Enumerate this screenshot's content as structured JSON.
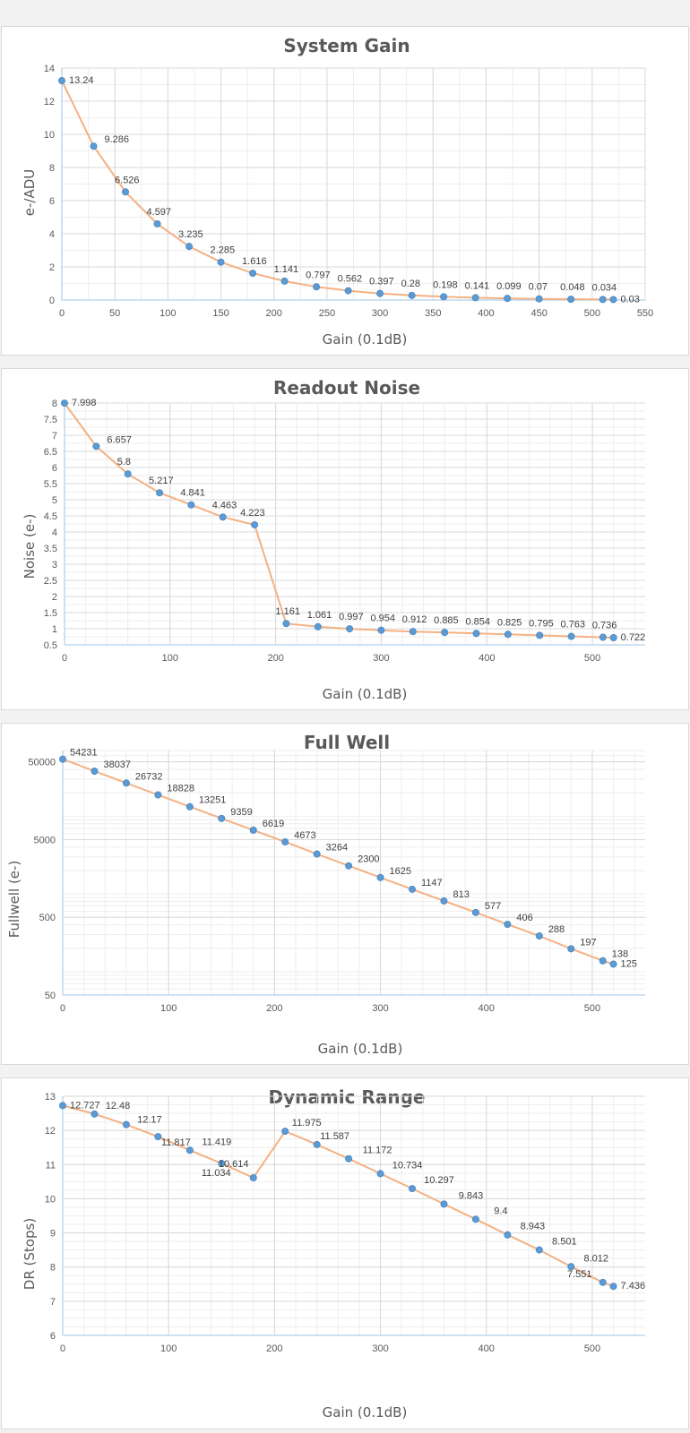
{
  "colors": {
    "line": "#f4b183",
    "marker": "#5b9bd5",
    "axis": "#bdd7ee",
    "grid_major": "#d9d9d9",
    "grid_minor": "#eeeeee"
  },
  "chart_data": [
    {
      "type": "line",
      "title": "System Gain",
      "xlabel": "Gain (0.1dB)",
      "ylabel": "e-/ADU",
      "xlim": [
        0,
        550
      ],
      "ylim": [
        0,
        14
      ],
      "xticks": [
        0,
        50,
        100,
        150,
        200,
        250,
        300,
        350,
        400,
        450,
        500,
        550
      ],
      "yticks": [
        0,
        2,
        4,
        6,
        8,
        10,
        12,
        14
      ],
      "grid": true,
      "y_scale": "linear",
      "x": [
        0,
        30,
        60,
        90,
        120,
        150,
        180,
        210,
        240,
        270,
        300,
        330,
        360,
        390,
        420,
        450,
        480,
        510,
        520
      ],
      "y": [
        13.24,
        9.286,
        6.526,
        4.597,
        3.235,
        2.285,
        1.616,
        1.141,
        0.797,
        0.562,
        0.397,
        0.28,
        0.198,
        0.141,
        0.099,
        0.07,
        0.048,
        0.034,
        0.03
      ],
      "labels": [
        "13.24",
        "9.286",
        "6.526",
        "4.597",
        "3.235",
        "2.285",
        "1.616",
        "1.141",
        "0.797",
        "0.562",
        "0.397",
        "0.28",
        "0.198",
        "0.141",
        "0.099",
        "0.07",
        "0.048",
        "0.034",
        "0.03"
      ]
    },
    {
      "type": "line",
      "title": "Readout Noise",
      "xlabel": "Gain (0.1dB)",
      "ylabel": "Noise (e-)",
      "xlim": [
        0,
        550
      ],
      "ylim": [
        0.5,
        8
      ],
      "xticks": [
        0,
        100,
        200,
        300,
        400,
        500
      ],
      "yticks": [
        0.5,
        1,
        1.5,
        2,
        2.5,
        3,
        3.5,
        4,
        4.5,
        5,
        5.5,
        6,
        6.5,
        7,
        7.5,
        8
      ],
      "grid": true,
      "y_scale": "linear",
      "x": [
        0,
        30,
        60,
        90,
        120,
        150,
        180,
        210,
        240,
        270,
        300,
        330,
        360,
        390,
        420,
        450,
        480,
        510,
        520
      ],
      "y": [
        7.998,
        6.657,
        5.8,
        5.217,
        4.841,
        4.463,
        4.223,
        1.161,
        1.061,
        0.997,
        0.954,
        0.912,
        0.885,
        0.854,
        0.825,
        0.795,
        0.763,
        0.736,
        0.722
      ],
      "labels": [
        "7.998",
        "6.657",
        "5.8",
        "5.217",
        "4.841",
        "4.463",
        "4.223",
        "1.161",
        "1.061",
        "0.997",
        "0.954",
        "0.912",
        "0.885",
        "0.854",
        "0.825",
        "0.795",
        "0.763",
        "0.736",
        "0.722"
      ]
    },
    {
      "type": "line",
      "title": "Full Well",
      "xlabel": "Gain (0.1dB)",
      "ylabel": "Fullwell (e-)",
      "xlim": [
        0,
        550
      ],
      "ylim": [
        50,
        70000
      ],
      "xticks": [
        0,
        100,
        200,
        300,
        400,
        500
      ],
      "yticks": [
        50,
        500,
        5000,
        50000
      ],
      "grid": true,
      "y_scale": "log",
      "x": [
        0,
        30,
        60,
        90,
        120,
        150,
        180,
        210,
        240,
        270,
        300,
        330,
        360,
        390,
        420,
        450,
        480,
        510,
        520
      ],
      "y": [
        54231,
        38037,
        26732,
        18828,
        13251,
        9359,
        6619,
        4673,
        3264,
        2300,
        1625,
        1147,
        813,
        577,
        406,
        288,
        197,
        138,
        125
      ],
      "labels": [
        "54231",
        "38037",
        "26732",
        "18828",
        "13251",
        "9359",
        "6619",
        "4673",
        "3264",
        "2300",
        "1625",
        "1147",
        "813",
        "577",
        "406",
        "288",
        "197",
        "138",
        "125"
      ]
    },
    {
      "type": "line",
      "title": "Dynamic Range",
      "xlabel": "Gain (0.1dB)",
      "ylabel": "DR (Stops)",
      "xlim": [
        0,
        550
      ],
      "ylim": [
        6,
        13
      ],
      "xticks": [
        0,
        100,
        200,
        300,
        400,
        500
      ],
      "yticks": [
        6,
        7,
        8,
        9,
        10,
        11,
        12,
        13
      ],
      "grid": true,
      "y_scale": "linear",
      "x": [
        0,
        30,
        60,
        90,
        120,
        150,
        180,
        210,
        240,
        270,
        300,
        330,
        360,
        390,
        420,
        450,
        480,
        510,
        520
      ],
      "y": [
        12.727,
        12.48,
        12.17,
        11.817,
        11.419,
        11.034,
        10.614,
        11.975,
        11.587,
        11.172,
        10.734,
        10.297,
        9.843,
        9.4,
        8.943,
        8.501,
        8.012,
        7.551,
        7.436
      ],
      "labels": [
        "12.727",
        "12.48",
        "12.17",
        "11.817",
        "11.419",
        "11.034",
        "10.614",
        "11.975",
        "11.587",
        "11.172",
        "10.734",
        "10.297",
        "9.843",
        "9.4",
        "8.943",
        "8.501",
        "8.012",
        "7.551",
        "7.436"
      ]
    }
  ]
}
